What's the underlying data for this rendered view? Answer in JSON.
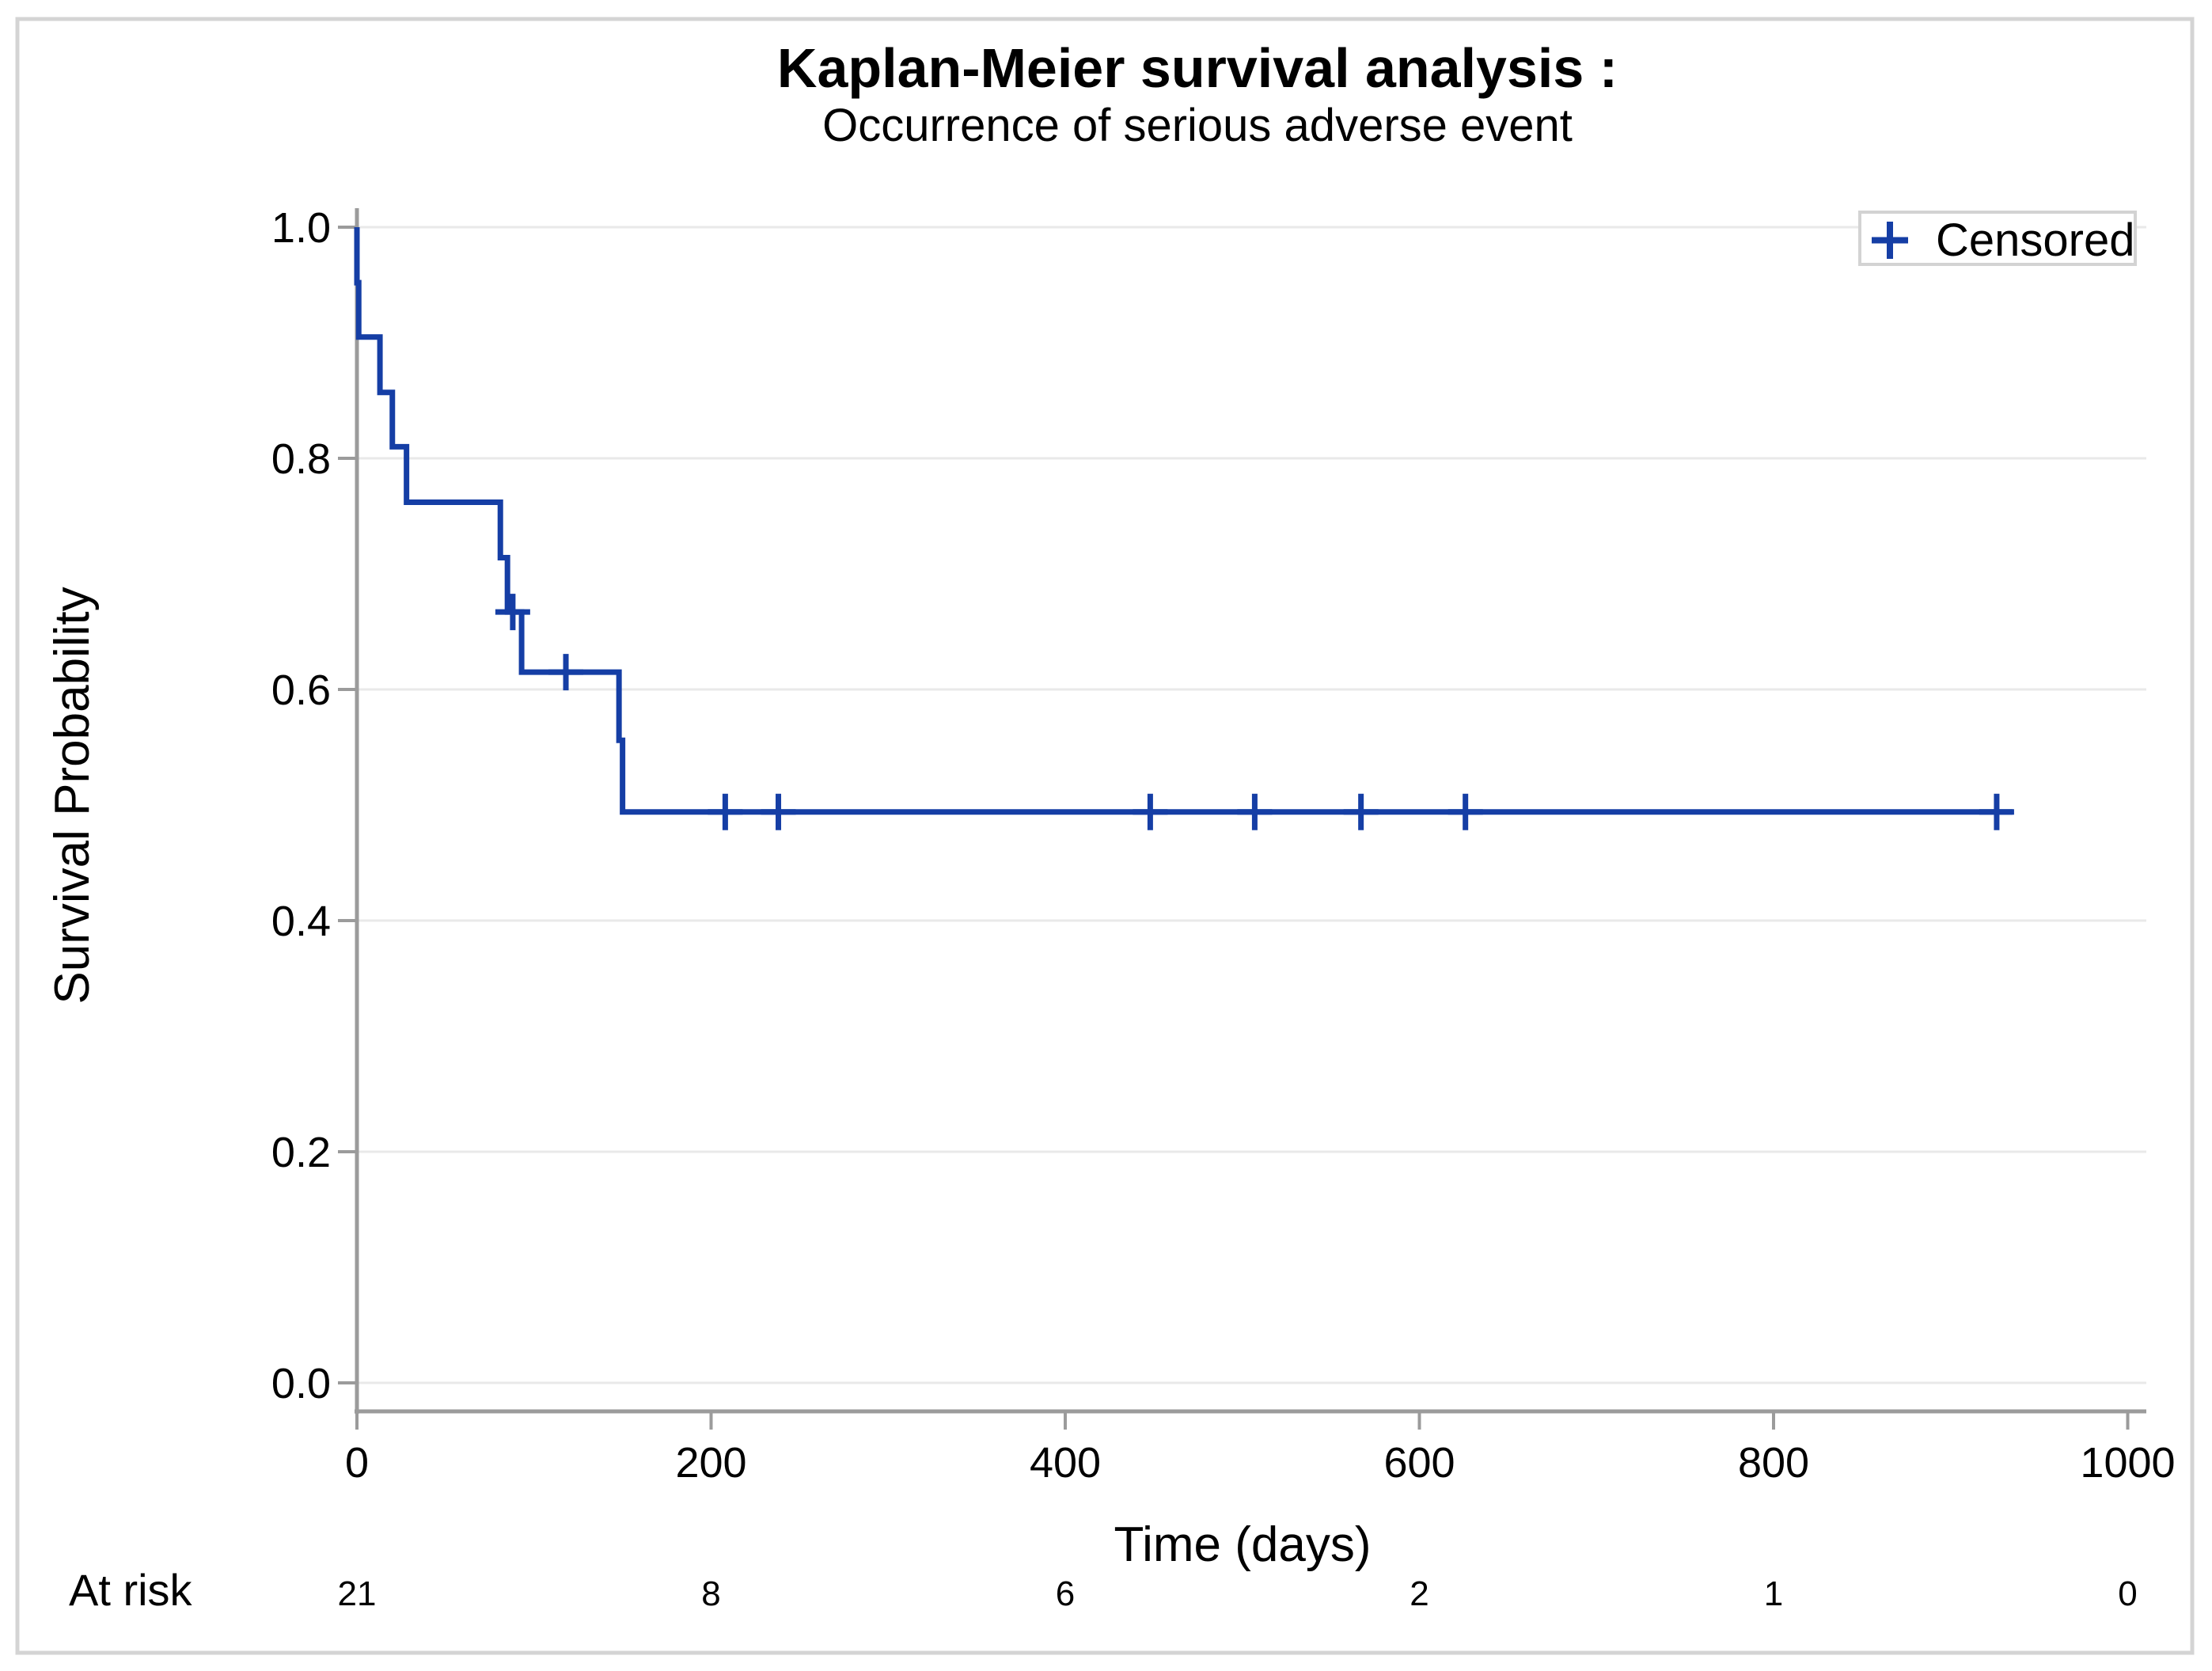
{
  "figure": {
    "title": "Kaplan-Meier survival analysis :",
    "subtitle": "Occurrence of serious adverse event"
  },
  "chart_data": {
    "type": "line",
    "subtype": "kaplan-meier-step-curve",
    "title": "Kaplan-Meier survival analysis :",
    "subtitle": "Occurrence of serious adverse event",
    "xlabel": "Time (days)",
    "ylabel": "Survival Probability",
    "xlim": [
      0,
      1000
    ],
    "ylim": [
      0.0,
      1.0
    ],
    "x_ticks": [
      0,
      200,
      400,
      600,
      800,
      1000
    ],
    "y_ticks": [
      0.0,
      0.2,
      0.4,
      0.6,
      0.8,
      1.0
    ],
    "grid": "horizontal",
    "legend": {
      "label": "Censored",
      "position": "top-right",
      "marker": "plus"
    },
    "series": [
      {
        "name": "survival-curve",
        "n_at_start": 21,
        "start": {
          "t": 0,
          "s": 1.0
        },
        "steps": [
          {
            "t": 0,
            "s": 0.952
          },
          {
            "t": 1,
            "s": 0.905
          },
          {
            "t": 13,
            "s": 0.857
          },
          {
            "t": 20,
            "s": 0.81
          },
          {
            "t": 28,
            "s": 0.762
          },
          {
            "t": 81,
            "s": 0.714
          },
          {
            "t": 85,
            "s": 0.667
          },
          {
            "t": 93,
            "s": 0.615
          },
          {
            "t": 148,
            "s": 0.556
          },
          {
            "t": 150,
            "s": 0.494
          }
        ],
        "end_t": 935
      }
    ],
    "censored_points": [
      {
        "t": 88,
        "s": 0.667
      },
      {
        "t": 118,
        "s": 0.615
      },
      {
        "t": 208,
        "s": 0.494
      },
      {
        "t": 238,
        "s": 0.494
      },
      {
        "t": 448,
        "s": 0.494
      },
      {
        "t": 507,
        "s": 0.494
      },
      {
        "t": 567,
        "s": 0.494
      },
      {
        "t": 626,
        "s": 0.494
      },
      {
        "t": 926,
        "s": 0.494
      }
    ],
    "at_risk": {
      "label": "At risk",
      "times": [
        0,
        200,
        400,
        600,
        800,
        1000
      ],
      "counts": [
        21,
        8,
        6,
        2,
        1,
        0
      ]
    },
    "colors": {
      "curve": "#153EA5",
      "axis": "#9B9B9B",
      "grid": "#E9E9E9",
      "text": "#000000",
      "legend_border": "#D3D3D3",
      "figure_border": "#D4D4D4"
    }
  }
}
